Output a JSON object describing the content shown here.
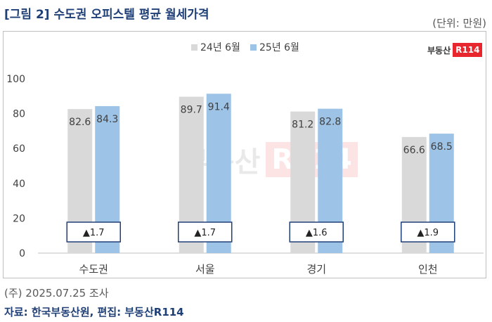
{
  "title": "[그림 2] 수도권 오피스텔 평균 월세가격",
  "unit": "(단위: 만원)",
  "logo": {
    "name": "부동산",
    "mark": "R114"
  },
  "watermark": {
    "name": "부동산",
    "mark": "R114"
  },
  "footnote": "(주) 2025.07.25 조사",
  "source": "자료: 한국부동산원, 편집: 부동산R114",
  "colors": {
    "series_2024": "#d9d9d9",
    "series_2025": "#9dc3e6",
    "title": "#1f3f77"
  },
  "chart_data": {
    "type": "bar",
    "categories": [
      "수도권",
      "서울",
      "경기",
      "인천"
    ],
    "series": [
      {
        "name": "24년 6월",
        "values": [
          82.6,
          89.7,
          81.2,
          66.6
        ]
      },
      {
        "name": "25년 6월",
        "values": [
          84.3,
          91.4,
          82.8,
          68.5
        ]
      }
    ],
    "changes": [
      "▲1.7",
      "▲1.7",
      "▲1.6",
      "▲1.9"
    ],
    "yticks": [
      0,
      20,
      40,
      60,
      80,
      100
    ],
    "ylim": [
      0,
      100
    ],
    "grid": false,
    "legend": "top-center"
  }
}
